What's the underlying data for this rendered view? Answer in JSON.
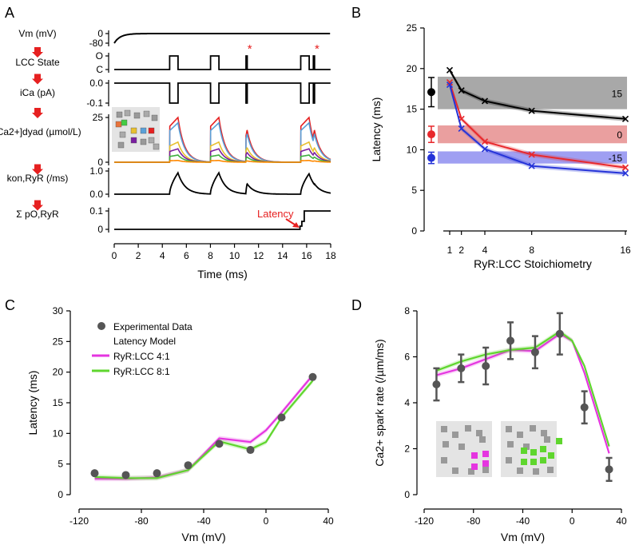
{
  "panels": {
    "a": "A",
    "b": "B",
    "c": "C",
    "d": "D"
  },
  "chart_data": [
    {
      "type": "line",
      "id": "A",
      "xlabel": "Time (ms)",
      "xlim": [
        0,
        18
      ],
      "xticks": [
        0,
        2,
        4,
        6,
        8,
        10,
        12,
        14,
        16,
        18
      ],
      "cascade_labels": [
        "Vm (mV)",
        "LCC State",
        "iCa (pA)",
        "[Ca2+]dyad (µmol/L)",
        "kon,RyR (/ms)",
        "Σ pO,RyR"
      ],
      "rows": [
        {
          "label": "Vm (mV)",
          "ticks": [
            "0",
            "-80"
          ]
        },
        {
          "label": "LCC State",
          "ticks": [
            "O",
            "C"
          ]
        },
        {
          "label": "iCa (pA)",
          "ticks": [
            "0.0",
            "-0.1"
          ]
        },
        {
          "label": "[Ca2+]dyad (µmol/L)",
          "ticks": [
            "25",
            "0"
          ]
        },
        {
          "label": "kon,RyR (/ms)",
          "ticks": [
            "1.0",
            "0.0"
          ]
        },
        {
          "label": "Σ pO,RyR",
          "ticks": [
            "0.1",
            "0"
          ]
        }
      ],
      "openings": [
        [
          4.6,
          5.3
        ],
        [
          8.0,
          8.7
        ],
        [
          10.95,
          11.05
        ],
        [
          15.5,
          16.2
        ],
        [
          16.55,
          16.65
        ]
      ],
      "stars": [
        11.2,
        16.8
      ],
      "latency_label": "Latency",
      "latency_time": 15.5
    },
    {
      "type": "line",
      "id": "B",
      "xlabel": "RyR:LCC Stoichiometry",
      "ylabel": "Latency (ms)",
      "ylim": [
        0,
        25
      ],
      "yticks": [
        0,
        5,
        10,
        15,
        20,
        25
      ],
      "xticks": [
        1,
        2,
        4,
        8,
        16
      ],
      "series": [
        {
          "name": "15",
          "color": "#000000",
          "x": [
            1,
            2,
            4,
            8,
            16
          ],
          "values": [
            19.8,
            17.3,
            16.0,
            14.8,
            13.8
          ],
          "band": [
            15.0,
            19.0
          ],
          "band_color": "#999999",
          "exp": 17.1,
          "exp_err": 1.8
        },
        {
          "name": "0",
          "color": "#e8282c",
          "x": [
            1,
            2,
            4,
            8,
            16
          ],
          "values": [
            18.3,
            13.8,
            11.0,
            9.4,
            7.8
          ],
          "band": [
            10.8,
            13.0
          ],
          "band_color": "#e68e8e",
          "exp": 11.9,
          "exp_err": 1.0
        },
        {
          "name": "-15",
          "color": "#2533d8",
          "x": [
            1,
            2,
            4,
            8,
            16
          ],
          "values": [
            18.0,
            12.6,
            10.1,
            8.0,
            7.1
          ],
          "band": [
            8.3,
            9.8
          ],
          "band_color": "#8e8ef0",
          "exp": 9.0,
          "exp_err": 0.7
        }
      ]
    },
    {
      "type": "line",
      "id": "C",
      "xlabel": "Vm (mV)",
      "ylabel": "Latency (ms)",
      "xlim": [
        -120,
        40
      ],
      "ylim": [
        0,
        30
      ],
      "xticks": [
        -120,
        -80,
        -40,
        0,
        40
      ],
      "yticks": [
        0,
        5,
        10,
        15,
        20,
        25,
        30
      ],
      "legend": [
        "Experimental Data",
        "Latency Model",
        "RyR:LCC 4:1",
        "RyR:LCC 8:1"
      ],
      "experimental": {
        "x": [
          -110,
          -90,
          -70,
          -50,
          -30,
          -10,
          10,
          30
        ],
        "values": [
          3.5,
          3.2,
          3.5,
          4.8,
          8.3,
          7.3,
          12.6,
          19.2
        ]
      },
      "series": [
        {
          "name": "RyR:LCC 4:1",
          "color": "#e535e0",
          "x": [
            -110,
            -90,
            -70,
            -50,
            -30,
            -10,
            0,
            10,
            30
          ],
          "values": [
            2.6,
            2.6,
            2.8,
            4.0,
            9.2,
            8.6,
            10.5,
            13.4,
            19.5
          ]
        },
        {
          "name": "RyR:LCC 8:1",
          "color": "#5fd62e",
          "x": [
            -110,
            -90,
            -70,
            -50,
            -30,
            -10,
            0,
            10,
            30
          ],
          "values": [
            2.9,
            2.7,
            2.7,
            4.0,
            8.7,
            7.4,
            8.6,
            12.6,
            18.6
          ]
        }
      ]
    },
    {
      "type": "line",
      "id": "D",
      "xlabel": "Vm (mV)",
      "ylabel": "Ca2+ spark rate (/µm/ms)",
      "xlim": [
        -120,
        40
      ],
      "ylim": [
        0,
        8
      ],
      "xticks": [
        -120,
        -80,
        -40,
        0,
        40
      ],
      "yticks": [
        0,
        2,
        4,
        6,
        8
      ],
      "experimental": {
        "x": [
          -110,
          -90,
          -70,
          -50,
          -30,
          -10,
          10,
          30
        ],
        "values": [
          4.8,
          5.5,
          5.6,
          6.7,
          6.2,
          7.0,
          3.8,
          1.1
        ],
        "err": [
          0.7,
          0.6,
          0.8,
          0.8,
          0.7,
          0.9,
          0.7,
          0.5
        ]
      },
      "series": [
        {
          "name": "RyR:LCC 4:1",
          "color": "#e535e0",
          "x": [
            -110,
            -90,
            -70,
            -50,
            -30,
            -10,
            0,
            10,
            30
          ],
          "values": [
            5.2,
            5.5,
            5.9,
            6.3,
            6.25,
            7.0,
            6.7,
            5.3,
            1.8
          ]
        },
        {
          "name": "RyR:LCC 8:1",
          "color": "#5fd62e",
          "x": [
            -110,
            -90,
            -70,
            -50,
            -30,
            -10,
            0,
            10,
            30
          ],
          "values": [
            5.4,
            5.8,
            6.1,
            6.3,
            6.4,
            7.1,
            6.7,
            5.6,
            2.1
          ]
        }
      ]
    }
  ]
}
